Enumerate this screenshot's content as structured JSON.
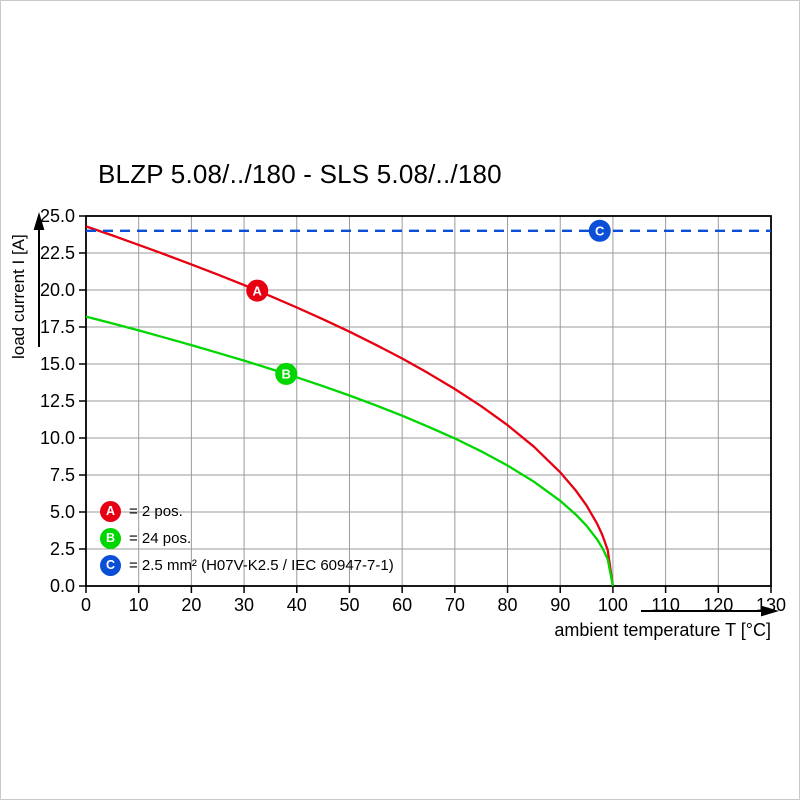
{
  "chart_data": {
    "type": "line",
    "title": "BLZP 5.08/../180 - SLS 5.08/../180",
    "xlabel": "ambient temperature T [°C]",
    "ylabel": "load current I [A]",
    "xlim": [
      0,
      130
    ],
    "ylim": [
      0,
      25
    ],
    "x_ticks": [
      0,
      10,
      20,
      30,
      40,
      50,
      60,
      70,
      80,
      90,
      100,
      110,
      120,
      130
    ],
    "y_ticks": [
      0,
      2.5,
      5,
      7.5,
      10,
      12.5,
      15,
      17.5,
      20,
      22.5,
      25
    ],
    "y_tick_labels": [
      "0.0",
      "2.5",
      "5.0",
      "7.5",
      "10.0",
      "12.5",
      "15.0",
      "17.5",
      "20.0",
      "22.5",
      "25.0"
    ],
    "grid": true,
    "legend_position": "bottom-left-inside",
    "colors": {
      "grid": "#9b9b9b",
      "axis": "#000000",
      "background": "#ffffff"
    },
    "series": [
      {
        "name": "A",
        "label": "= 2 pos.",
        "color": "#e60012",
        "style": "solid",
        "marker": {
          "x": 32.5,
          "y": 19.96
        },
        "points": [
          [
            0,
            24.3
          ],
          [
            5,
            23.69
          ],
          [
            10,
            23.05
          ],
          [
            15,
            22.4
          ],
          [
            20,
            21.73
          ],
          [
            25,
            21.04
          ],
          [
            30,
            20.33
          ],
          [
            35,
            19.59
          ],
          [
            40,
            18.82
          ],
          [
            45,
            18.02
          ],
          [
            50,
            17.18
          ],
          [
            55,
            16.3
          ],
          [
            60,
            15.37
          ],
          [
            65,
            14.37
          ],
          [
            70,
            13.31
          ],
          [
            75,
            12.15
          ],
          [
            80,
            10.87
          ],
          [
            85,
            9.41
          ],
          [
            90,
            7.68
          ],
          [
            93,
            6.43
          ],
          [
            95,
            5.43
          ],
          [
            97,
            4.21
          ],
          [
            98,
            3.44
          ],
          [
            99,
            2.43
          ],
          [
            100,
            0
          ]
        ]
      },
      {
        "name": "B",
        "label": "= 24 pos.",
        "color": "#00d600",
        "style": "solid",
        "marker": {
          "x": 38,
          "y": 14.33
        },
        "points": [
          [
            0,
            18.2
          ],
          [
            5,
            17.74
          ],
          [
            10,
            17.27
          ],
          [
            15,
            16.78
          ],
          [
            20,
            16.28
          ],
          [
            25,
            15.76
          ],
          [
            30,
            15.23
          ],
          [
            35,
            14.67
          ],
          [
            40,
            14.1
          ],
          [
            45,
            13.5
          ],
          [
            50,
            12.87
          ],
          [
            55,
            12.21
          ],
          [
            60,
            11.51
          ],
          [
            65,
            10.76
          ],
          [
            70,
            9.97
          ],
          [
            75,
            9.1
          ],
          [
            80,
            8.14
          ],
          [
            85,
            7.05
          ],
          [
            90,
            5.76
          ],
          [
            93,
            4.82
          ],
          [
            95,
            4.07
          ],
          [
            97,
            3.15
          ],
          [
            98,
            2.57
          ],
          [
            99,
            1.82
          ],
          [
            100,
            0
          ]
        ]
      },
      {
        "name": "C",
        "label": "= 2.5 mm² (H07V-K2.5 / IEC 60947-7-1)",
        "color": "#0a4fd6",
        "style": "dashed",
        "marker": {
          "x": 97.5,
          "y": 24
        },
        "points": [
          [
            0,
            24
          ],
          [
            130,
            24
          ]
        ]
      }
    ]
  }
}
